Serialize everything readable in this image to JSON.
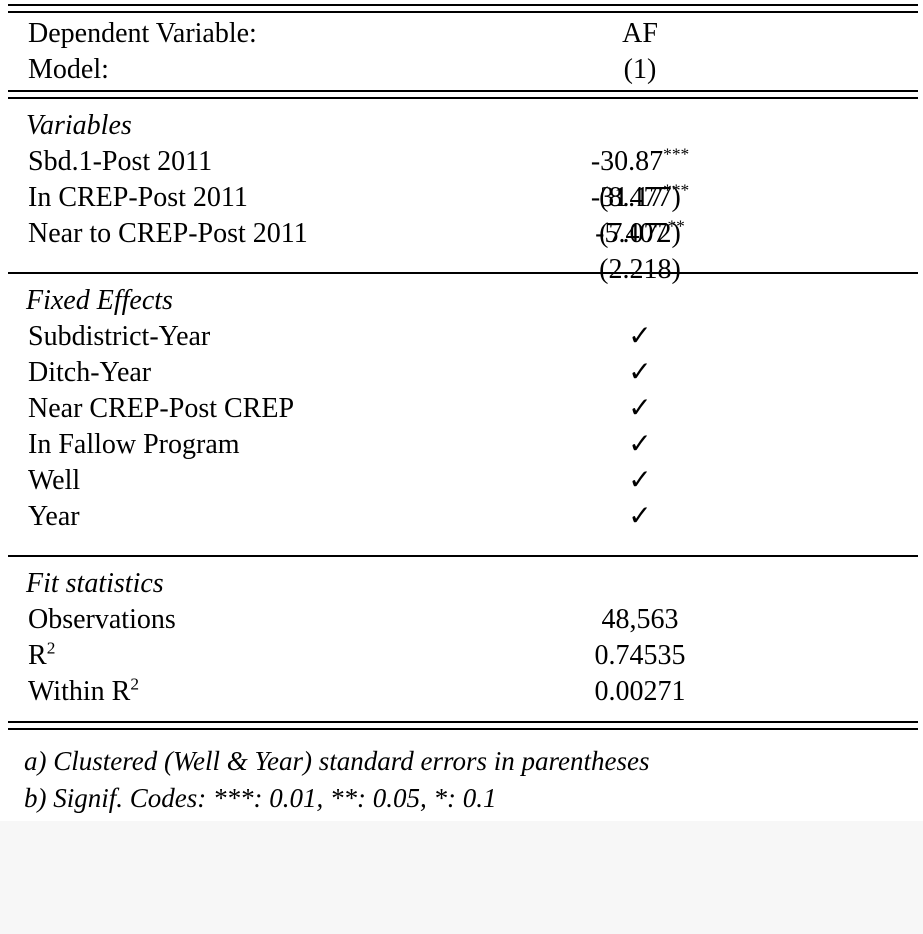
{
  "table": {
    "header": {
      "rows": [
        {
          "label": "Dependent Variable:",
          "value": "AF"
        },
        {
          "label": "Model:",
          "value": "(1)"
        }
      ]
    },
    "variables": {
      "section_title": "Variables",
      "rows": [
        {
          "label": "Sbd.1-Post 2011",
          "estimate": "-30.87",
          "stars": "***",
          "se": "(8.477)"
        },
        {
          "label": "In CREP-Post 2011",
          "estimate": "-31.17",
          "stars": "***",
          "se": "(7.072)"
        },
        {
          "label": "Near to CREP-Post 2011",
          "estimate": "-5.407",
          "stars": "**",
          "se": "(2.218)"
        }
      ]
    },
    "fixed_effects": {
      "section_title": "Fixed Effects",
      "rows": [
        {
          "label": "Subdistrict-Year",
          "value": "✓"
        },
        {
          "label": "Ditch-Year",
          "value": "✓"
        },
        {
          "label": "Near CREP-Post CREP",
          "value": "✓"
        },
        {
          "label": "In Fallow Program",
          "value": "✓"
        },
        {
          "label": "Well",
          "value": "✓"
        },
        {
          "label": "Year",
          "value": "✓"
        }
      ]
    },
    "fit_statistics": {
      "section_title": "Fit statistics",
      "rows": [
        {
          "label_base": "Observations",
          "value": "48,563"
        },
        {
          "label_base": "R",
          "label_sup": "2",
          "value": "0.74535"
        },
        {
          "label_base": "Within R",
          "label_sup": "2",
          "value": "0.00271"
        }
      ]
    },
    "notes": [
      "a) Clustered (Well & Year) standard errors in parentheses",
      "b) Signif. Codes: ***: 0.01, **: 0.05, *: 0.1"
    ],
    "colors": {
      "rule": "#000000",
      "background": "#ffffff",
      "bottom_strip": "#f7f7f7"
    }
  }
}
